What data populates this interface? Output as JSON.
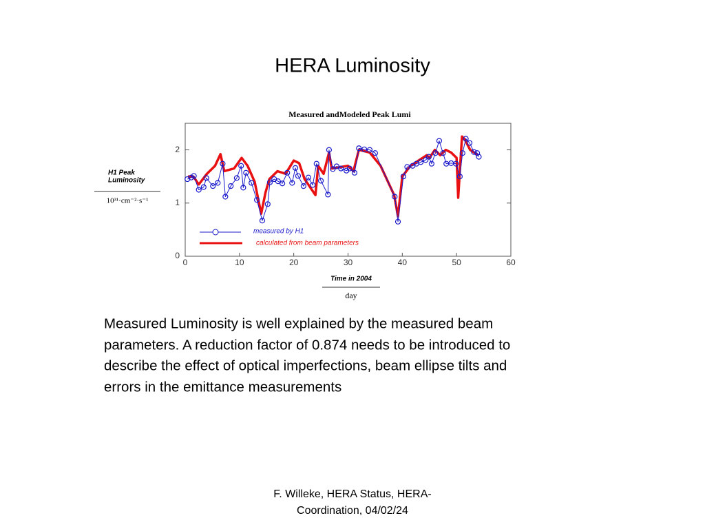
{
  "title": "HERA Luminosity",
  "chart_data": {
    "type": "line",
    "title": "Measured andModeled Peak Lumi",
    "ylabel": [
      "H1 Peak",
      "Luminosity"
    ],
    "yunit": "10³¹·cm⁻²·s⁻¹",
    "xlabel": "Time in 2004",
    "xunit": "day",
    "xlim": [
      0,
      60
    ],
    "xticks": [
      0,
      10,
      20,
      30,
      40,
      50,
      60
    ],
    "ylim": [
      0,
      2.5
    ],
    "yticks": [
      0,
      1,
      2
    ],
    "series": [
      {
        "name": "measured by H1",
        "color": "#1a1acc",
        "marker": "o",
        "x": [
          0.4,
          1.1,
          1.6,
          2.5,
          3.4,
          3.9,
          5.1,
          6,
          6.9,
          7.4,
          8.4,
          9.5,
          10.3,
          10.7,
          11.2,
          12.2,
          13.2,
          14.2,
          15.2,
          15.6,
          16.4,
          17.1,
          17.9,
          18.8,
          19.7,
          20.3,
          20.8,
          21.8,
          22.7,
          23.5,
          24.2,
          25,
          26.3,
          26.5,
          27.2,
          27.9,
          28.7,
          29.7,
          30.3,
          31.2,
          32,
          33,
          34,
          35,
          38.6,
          39.2,
          40.2,
          40.9,
          41.9,
          42.6,
          43.4,
          44.3,
          44.9,
          45.4,
          46.1,
          46.8,
          47.5,
          48.1,
          49,
          49.9,
          50.6,
          51.1,
          51.7,
          52.4,
          53.2,
          53.8,
          54.1
        ],
        "values": [
          1.45,
          1.48,
          1.51,
          1.25,
          1.3,
          1.47,
          1.32,
          1.38,
          1.74,
          1.12,
          1.32,
          1.47,
          1.7,
          1.29,
          1.57,
          1.38,
          1.06,
          0.67,
          0.98,
          1.39,
          1.45,
          1.41,
          1.37,
          1.57,
          1.38,
          1.66,
          1.51,
          1.32,
          1.48,
          1.34,
          1.74,
          1.42,
          1.16,
          2.0,
          1.64,
          1.69,
          1.65,
          1.61,
          1.65,
          1.57,
          2.03,
          2.01,
          2.0,
          1.94,
          1.12,
          0.65,
          1.5,
          1.68,
          1.7,
          1.74,
          1.77,
          1.81,
          1.87,
          1.74,
          1.94,
          2.17,
          1.94,
          1.74,
          1.75,
          1.74,
          1.5,
          1.94,
          2.21,
          2.13,
          1.96,
          1.94,
          1.87
        ]
      },
      {
        "name": "calculated from beam parameters",
        "color": "#e81010",
        "x": [
          0.5,
          1.5,
          2.5,
          4,
          5.5,
          6.5,
          7.2,
          9,
          10.4,
          11.5,
          12.8,
          14,
          14.8,
          15.5,
          17,
          18.5,
          20,
          21,
          22,
          24,
          24.5,
          25.5,
          26.5,
          27,
          30,
          31,
          32,
          34,
          36,
          38.5,
          39.2,
          40,
          41.5,
          43,
          44.5,
          45,
          46,
          47,
          48,
          49,
          50,
          50.3,
          50.6,
          51,
          51.5,
          52.5,
          54
        ],
        "values": [
          1.5,
          1.5,
          1.35,
          1.55,
          1.7,
          1.92,
          1.6,
          1.65,
          1.85,
          1.7,
          1.4,
          0.8,
          1.2,
          1.45,
          1.6,
          1.55,
          1.8,
          1.75,
          1.45,
          1.15,
          1.7,
          1.55,
          1.95,
          1.65,
          1.7,
          1.6,
          2.0,
          1.95,
          1.7,
          1.15,
          0.75,
          1.5,
          1.7,
          1.8,
          1.9,
          1.85,
          2.0,
          1.9,
          2.0,
          1.95,
          1.85,
          1.1,
          1.6,
          2.25,
          2.2,
          2.0,
          1.9
        ]
      }
    ]
  },
  "body": [
    "Measured  Luminosity  is well explained by the measured beam",
    "parameters. A reduction factor of 0.874 needs to be introduced to",
    "describe the effect of optical imperfections, beam ellipse tilts and",
    "errors in the emittance measurements"
  ],
  "footer": [
    "F. Willeke, HERA Status, HERA-",
    "Coordination, 04/02/24"
  ]
}
